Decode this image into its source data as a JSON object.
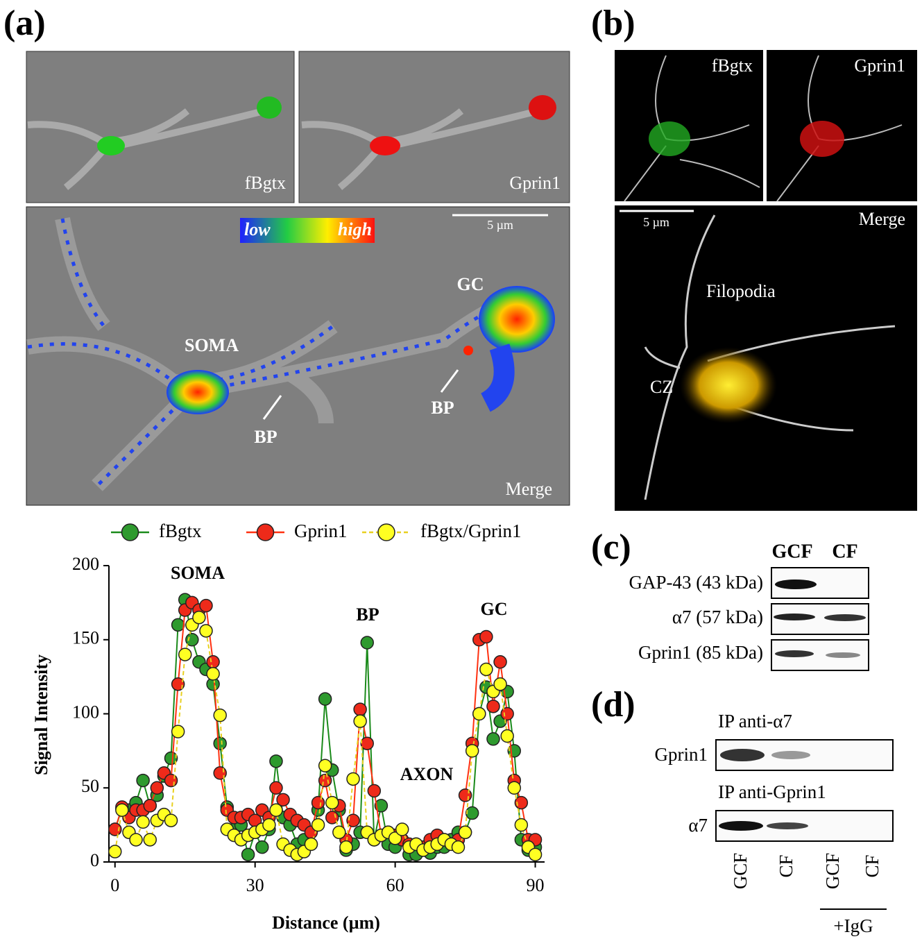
{
  "panel_a": {
    "label": "(a)",
    "channels": [
      "fBgtx",
      "Gprin1"
    ],
    "merge": "Merge",
    "scale": "5 µm",
    "colorbar": [
      "low",
      "high"
    ],
    "annotations": [
      "SOMA",
      "GC",
      "BP",
      "BP"
    ]
  },
  "panel_b": {
    "label": "(b)",
    "channels": [
      "fBgtx",
      "Gprin1"
    ],
    "merge": "Merge",
    "scale": "5 µm",
    "annotations": [
      "Filopodia",
      "CZ"
    ]
  },
  "chart_data": {
    "type": "line",
    "x_label": "Distance (µm)",
    "y_label": "Signal Intensity",
    "annotations": [
      "SOMA",
      "BP",
      "GC",
      "AXON"
    ],
    "x": [
      0,
      1.5,
      3,
      4.5,
      6,
      7.5,
      9,
      10.5,
      12,
      13.5,
      15,
      16.5,
      18,
      19.5,
      21,
      22.5,
      24,
      25.5,
      27,
      28.5,
      30,
      31.5,
      33,
      34.5,
      36,
      37.5,
      39,
      40.5,
      42,
      43.5,
      45,
      46.5,
      48,
      49.5,
      51,
      52.5,
      54,
      55.5,
      57,
      58.5,
      60,
      61.5,
      63,
      64.5,
      66,
      67.5,
      69,
      70.5,
      72,
      73.5,
      75,
      76.5,
      78,
      79.5,
      81,
      82.5,
      84,
      85.5,
      87,
      88.5,
      90
    ],
    "series": [
      {
        "name": "fBgtx",
        "color": "#1a8a1a",
        "marker": "#2e9a2e",
        "dashed": false,
        "values": [
          22,
          36,
          35,
          40,
          55,
          38,
          45,
          58,
          70,
          160,
          177,
          150,
          135,
          130,
          120,
          80,
          37,
          22,
          25,
          5,
          20,
          10,
          22,
          68,
          30,
          25,
          12,
          15,
          12,
          35,
          110,
          62,
          35,
          8,
          12,
          20,
          148,
          15,
          38,
          12,
          10,
          15,
          5,
          5,
          8,
          6,
          10,
          10,
          15,
          20,
          20,
          33,
          100,
          118,
          83,
          95,
          115,
          75,
          15,
          8,
          10
        ]
      },
      {
        "name": "Gprin1",
        "color": "#ff3010",
        "marker": "#ee2a1a",
        "dashed": false,
        "values": [
          22,
          37,
          30,
          35,
          35,
          38,
          50,
          60,
          55,
          120,
          170,
          175,
          170,
          173,
          135,
          60,
          35,
          30,
          30,
          32,
          28,
          35,
          30,
          50,
          42,
          32,
          28,
          25,
          20,
          40,
          55,
          30,
          38,
          15,
          28,
          103,
          80,
          48,
          18,
          20,
          18,
          15,
          12,
          12,
          10,
          15,
          18,
          15,
          12,
          15,
          45,
          80,
          150,
          152,
          105,
          135,
          100,
          55,
          40,
          15,
          15
        ]
      },
      {
        "name": "fBgtx/Gprin1",
        "color": "#e8d020",
        "marker": "#ffff22",
        "dashed": true,
        "values": [
          7,
          35,
          20,
          15,
          27,
          15,
          28,
          32,
          28,
          88,
          140,
          160,
          165,
          156,
          127,
          99,
          22,
          18,
          15,
          18,
          20,
          22,
          25,
          35,
          12,
          8,
          5,
          7,
          12,
          25,
          65,
          40,
          20,
          10,
          56,
          95,
          20,
          15,
          18,
          20,
          16,
          22,
          10,
          12,
          8,
          10,
          12,
          15,
          12,
          10,
          20,
          75,
          100,
          130,
          115,
          120,
          85,
          50,
          25,
          10,
          5
        ]
      }
    ],
    "xlim": [
      -1.3,
      92
    ],
    "xticks": [
      0,
      30,
      60,
      90
    ],
    "ylim": [
      0,
      200
    ],
    "yticks": [
      0,
      50,
      100,
      150,
      200
    ]
  },
  "panel_c": {
    "label": "(c)",
    "columns": [
      "GCF",
      "CF"
    ],
    "rows": [
      "GAP-43 (43 kDa)",
      "α7 (57 kDa)",
      "Gprin1 (85 kDa)"
    ]
  },
  "panel_d": {
    "label": "(d)",
    "blots": [
      {
        "title": "IP anti-α7",
        "row": "Gprin1"
      },
      {
        "title": "IP anti-Gprin1",
        "row": "α7"
      }
    ],
    "lanes": [
      "GCF",
      "CF",
      "GCF",
      "CF"
    ],
    "control": "+IgG"
  }
}
